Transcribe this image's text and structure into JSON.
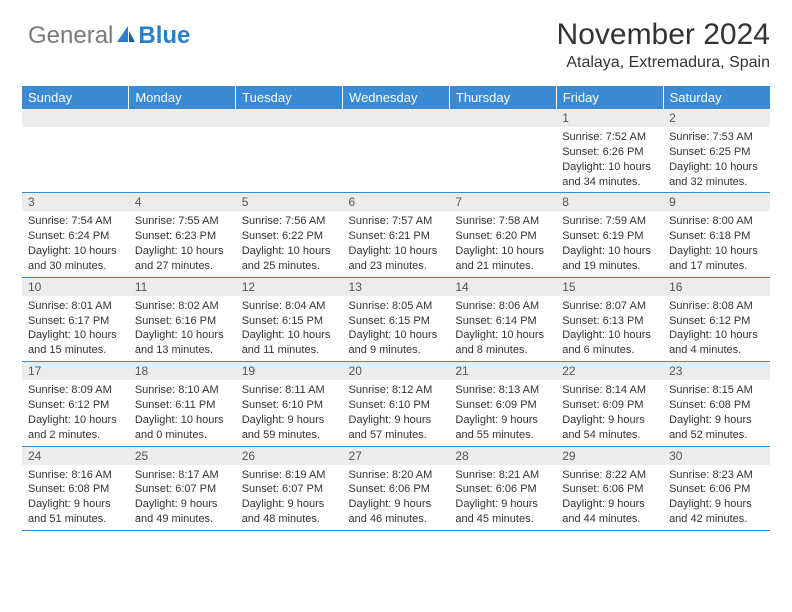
{
  "logo": {
    "grey": "General",
    "blue": "Blue"
  },
  "header": {
    "title": "November 2024",
    "location": "Atalaya, Extremadura, Spain"
  },
  "dayNames": [
    "Sunday",
    "Monday",
    "Tuesday",
    "Wednesday",
    "Thursday",
    "Friday",
    "Saturday"
  ],
  "weeks": [
    {
      "nums": [
        "",
        "",
        "",
        "",
        "",
        "1",
        "2"
      ],
      "cells": [
        {},
        {},
        {},
        {},
        {},
        {
          "sunrise": "Sunrise: 7:52 AM",
          "sunset": "Sunset: 6:26 PM",
          "day1": "Daylight: 10 hours",
          "day2": "and 34 minutes."
        },
        {
          "sunrise": "Sunrise: 7:53 AM",
          "sunset": "Sunset: 6:25 PM",
          "day1": "Daylight: 10 hours",
          "day2": "and 32 minutes."
        }
      ]
    },
    {
      "nums": [
        "3",
        "4",
        "5",
        "6",
        "7",
        "8",
        "9"
      ],
      "cells": [
        {
          "sunrise": "Sunrise: 7:54 AM",
          "sunset": "Sunset: 6:24 PM",
          "day1": "Daylight: 10 hours",
          "day2": "and 30 minutes."
        },
        {
          "sunrise": "Sunrise: 7:55 AM",
          "sunset": "Sunset: 6:23 PM",
          "day1": "Daylight: 10 hours",
          "day2": "and 27 minutes."
        },
        {
          "sunrise": "Sunrise: 7:56 AM",
          "sunset": "Sunset: 6:22 PM",
          "day1": "Daylight: 10 hours",
          "day2": "and 25 minutes."
        },
        {
          "sunrise": "Sunrise: 7:57 AM",
          "sunset": "Sunset: 6:21 PM",
          "day1": "Daylight: 10 hours",
          "day2": "and 23 minutes."
        },
        {
          "sunrise": "Sunrise: 7:58 AM",
          "sunset": "Sunset: 6:20 PM",
          "day1": "Daylight: 10 hours",
          "day2": "and 21 minutes."
        },
        {
          "sunrise": "Sunrise: 7:59 AM",
          "sunset": "Sunset: 6:19 PM",
          "day1": "Daylight: 10 hours",
          "day2": "and 19 minutes."
        },
        {
          "sunrise": "Sunrise: 8:00 AM",
          "sunset": "Sunset: 6:18 PM",
          "day1": "Daylight: 10 hours",
          "day2": "and 17 minutes."
        }
      ]
    },
    {
      "nums": [
        "10",
        "11",
        "12",
        "13",
        "14",
        "15",
        "16"
      ],
      "cells": [
        {
          "sunrise": "Sunrise: 8:01 AM",
          "sunset": "Sunset: 6:17 PM",
          "day1": "Daylight: 10 hours",
          "day2": "and 15 minutes."
        },
        {
          "sunrise": "Sunrise: 8:02 AM",
          "sunset": "Sunset: 6:16 PM",
          "day1": "Daylight: 10 hours",
          "day2": "and 13 minutes."
        },
        {
          "sunrise": "Sunrise: 8:04 AM",
          "sunset": "Sunset: 6:15 PM",
          "day1": "Daylight: 10 hours",
          "day2": "and 11 minutes."
        },
        {
          "sunrise": "Sunrise: 8:05 AM",
          "sunset": "Sunset: 6:15 PM",
          "day1": "Daylight: 10 hours",
          "day2": "and 9 minutes."
        },
        {
          "sunrise": "Sunrise: 8:06 AM",
          "sunset": "Sunset: 6:14 PM",
          "day1": "Daylight: 10 hours",
          "day2": "and 8 minutes."
        },
        {
          "sunrise": "Sunrise: 8:07 AM",
          "sunset": "Sunset: 6:13 PM",
          "day1": "Daylight: 10 hours",
          "day2": "and 6 minutes."
        },
        {
          "sunrise": "Sunrise: 8:08 AM",
          "sunset": "Sunset: 6:12 PM",
          "day1": "Daylight: 10 hours",
          "day2": "and 4 minutes."
        }
      ]
    },
    {
      "nums": [
        "17",
        "18",
        "19",
        "20",
        "21",
        "22",
        "23"
      ],
      "cells": [
        {
          "sunrise": "Sunrise: 8:09 AM",
          "sunset": "Sunset: 6:12 PM",
          "day1": "Daylight: 10 hours",
          "day2": "and 2 minutes."
        },
        {
          "sunrise": "Sunrise: 8:10 AM",
          "sunset": "Sunset: 6:11 PM",
          "day1": "Daylight: 10 hours",
          "day2": "and 0 minutes."
        },
        {
          "sunrise": "Sunrise: 8:11 AM",
          "sunset": "Sunset: 6:10 PM",
          "day1": "Daylight: 9 hours",
          "day2": "and 59 minutes."
        },
        {
          "sunrise": "Sunrise: 8:12 AM",
          "sunset": "Sunset: 6:10 PM",
          "day1": "Daylight: 9 hours",
          "day2": "and 57 minutes."
        },
        {
          "sunrise": "Sunrise: 8:13 AM",
          "sunset": "Sunset: 6:09 PM",
          "day1": "Daylight: 9 hours",
          "day2": "and 55 minutes."
        },
        {
          "sunrise": "Sunrise: 8:14 AM",
          "sunset": "Sunset: 6:09 PM",
          "day1": "Daylight: 9 hours",
          "day2": "and 54 minutes."
        },
        {
          "sunrise": "Sunrise: 8:15 AM",
          "sunset": "Sunset: 6:08 PM",
          "day1": "Daylight: 9 hours",
          "day2": "and 52 minutes."
        }
      ]
    },
    {
      "nums": [
        "24",
        "25",
        "26",
        "27",
        "28",
        "29",
        "30"
      ],
      "cells": [
        {
          "sunrise": "Sunrise: 8:16 AM",
          "sunset": "Sunset: 6:08 PM",
          "day1": "Daylight: 9 hours",
          "day2": "and 51 minutes."
        },
        {
          "sunrise": "Sunrise: 8:17 AM",
          "sunset": "Sunset: 6:07 PM",
          "day1": "Daylight: 9 hours",
          "day2": "and 49 minutes."
        },
        {
          "sunrise": "Sunrise: 8:19 AM",
          "sunset": "Sunset: 6:07 PM",
          "day1": "Daylight: 9 hours",
          "day2": "and 48 minutes."
        },
        {
          "sunrise": "Sunrise: 8:20 AM",
          "sunset": "Sunset: 6:06 PM",
          "day1": "Daylight: 9 hours",
          "day2": "and 46 minutes."
        },
        {
          "sunrise": "Sunrise: 8:21 AM",
          "sunset": "Sunset: 6:06 PM",
          "day1": "Daylight: 9 hours",
          "day2": "and 45 minutes."
        },
        {
          "sunrise": "Sunrise: 8:22 AM",
          "sunset": "Sunset: 6:06 PM",
          "day1": "Daylight: 9 hours",
          "day2": "and 44 minutes."
        },
        {
          "sunrise": "Sunrise: 8:23 AM",
          "sunset": "Sunset: 6:06 PM",
          "day1": "Daylight: 9 hours",
          "day2": "and 42 minutes."
        }
      ]
    }
  ]
}
